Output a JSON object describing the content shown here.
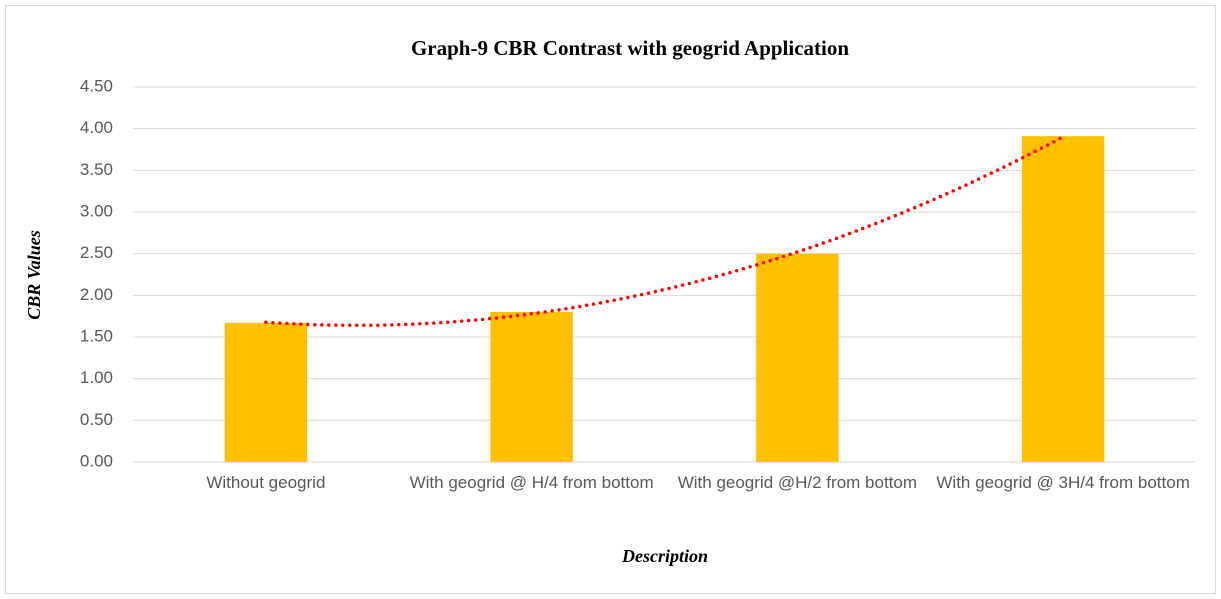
{
  "chart_data": {
    "type": "bar",
    "title": "Graph-9 CBR Contrast with geogrid Application",
    "xlabel": "Description",
    "ylabel": "CBR Values",
    "categories": [
      "Without geogrid",
      "With geogrid @ H/4 from bottom",
      "With geogrid @H/2 from bottom",
      "With geogrid @ 3H/4 from bottom"
    ],
    "values": [
      1.67,
      1.8,
      2.5,
      3.91
    ],
    "color": "#ffc000",
    "ylim": [
      0,
      4.5
    ],
    "yticks": [
      {
        "value": 0,
        "label": "0.00"
      },
      {
        "value": 0.5,
        "label": "0.50"
      },
      {
        "value": 1,
        "label": "1.00"
      },
      {
        "value": 1.5,
        "label": "1.50"
      },
      {
        "value": 2,
        "label": "2.00"
      },
      {
        "value": 2.5,
        "label": "2.50"
      },
      {
        "value": 3,
        "label": "3.00"
      },
      {
        "value": 3.5,
        "label": "3.50"
      },
      {
        "value": 4,
        "label": "4.00"
      },
      {
        "value": 4.5,
        "label": "4.50"
      }
    ],
    "grid": true,
    "trendline": {
      "kind": "polynomial",
      "order": 2,
      "color": "#ff0000"
    }
  }
}
